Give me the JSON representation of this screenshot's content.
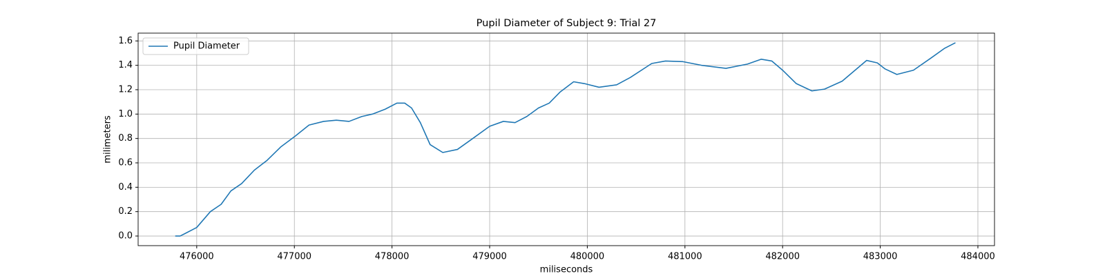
{
  "chart_data": {
    "type": "line",
    "title": "Pupil Diameter of Subject 9: Trial 27",
    "xlabel": "miliseconds",
    "ylabel": "milimeters",
    "x": [
      475780,
      475830,
      475880,
      476000,
      476140,
      476250,
      476350,
      476460,
      476590,
      476720,
      476860,
      477010,
      477150,
      477300,
      477430,
      477560,
      477690,
      477800,
      477930,
      478050,
      478130,
      478200,
      478290,
      478390,
      478520,
      478670,
      478810,
      479000,
      479140,
      479260,
      479380,
      479500,
      479610,
      479720,
      479860,
      479970,
      480120,
      480300,
      480440,
      480660,
      480800,
      480980,
      481170,
      481420,
      481640,
      481780,
      481890,
      482000,
      482140,
      482300,
      482430,
      482610,
      482860,
      482970,
      483050,
      483170,
      483340,
      483520,
      483660,
      483770
    ],
    "series": [
      {
        "name": "Pupil Diameter",
        "color": "#1f77b4",
        "values": [
          0.0,
          0.0,
          0.02,
          0.07,
          0.2,
          0.26,
          0.37,
          0.43,
          0.54,
          0.62,
          0.73,
          0.82,
          0.91,
          0.94,
          0.95,
          0.94,
          0.98,
          1.0,
          1.04,
          1.09,
          1.09,
          1.05,
          0.93,
          0.75,
          0.685,
          0.71,
          0.79,
          0.9,
          0.94,
          0.93,
          0.98,
          1.05,
          1.09,
          1.18,
          1.265,
          1.25,
          1.22,
          1.24,
          1.3,
          1.415,
          1.435,
          1.43,
          1.4,
          1.375,
          1.41,
          1.45,
          1.435,
          1.36,
          1.25,
          1.19,
          1.205,
          1.27,
          1.44,
          1.42,
          1.37,
          1.325,
          1.36,
          1.46,
          1.54,
          1.585
        ]
      }
    ],
    "xlim": [
      475400,
      484170
    ],
    "ylim": [
      -0.079,
      1.664
    ],
    "xticks": [
      476000,
      477000,
      478000,
      479000,
      480000,
      481000,
      482000,
      483000,
      484000
    ],
    "yticks": [
      {
        "value": 0,
        "label": "0.0"
      },
      0.2,
      0.4,
      0.6,
      0.8,
      {
        "value": 1,
        "label": "1.0"
      },
      1.2,
      1.4,
      1.6
    ],
    "grid": true,
    "legend": "upper left"
  }
}
